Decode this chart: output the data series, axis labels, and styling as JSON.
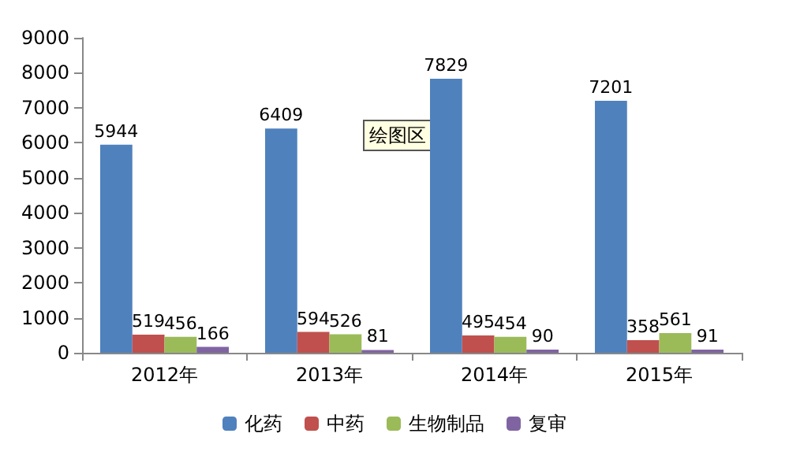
{
  "chart_data": {
    "type": "bar",
    "categories": [
      "2012年",
      "2013年",
      "2014年",
      "2015年"
    ],
    "series": [
      {
        "name": "化药",
        "color": "#4f81bd",
        "values": [
          5944,
          6409,
          7829,
          7201
        ]
      },
      {
        "name": "中药",
        "color": "#c0504d",
        "values": [
          519,
          594,
          495,
          358
        ]
      },
      {
        "name": "生物制品",
        "color": "#9bbb59",
        "values": [
          456,
          526,
          454,
          561
        ]
      },
      {
        "name": "复审",
        "color": "#8064a2",
        "values": [
          166,
          81,
          90,
          91
        ]
      }
    ],
    "ylim": [
      0,
      9000
    ],
    "yticks": [
      0,
      1000,
      2000,
      3000,
      4000,
      5000,
      6000,
      7000,
      8000,
      9000
    ],
    "grid": false,
    "legend": "bottom",
    "data_labels": true,
    "annotations": [
      "绘图区"
    ]
  }
}
